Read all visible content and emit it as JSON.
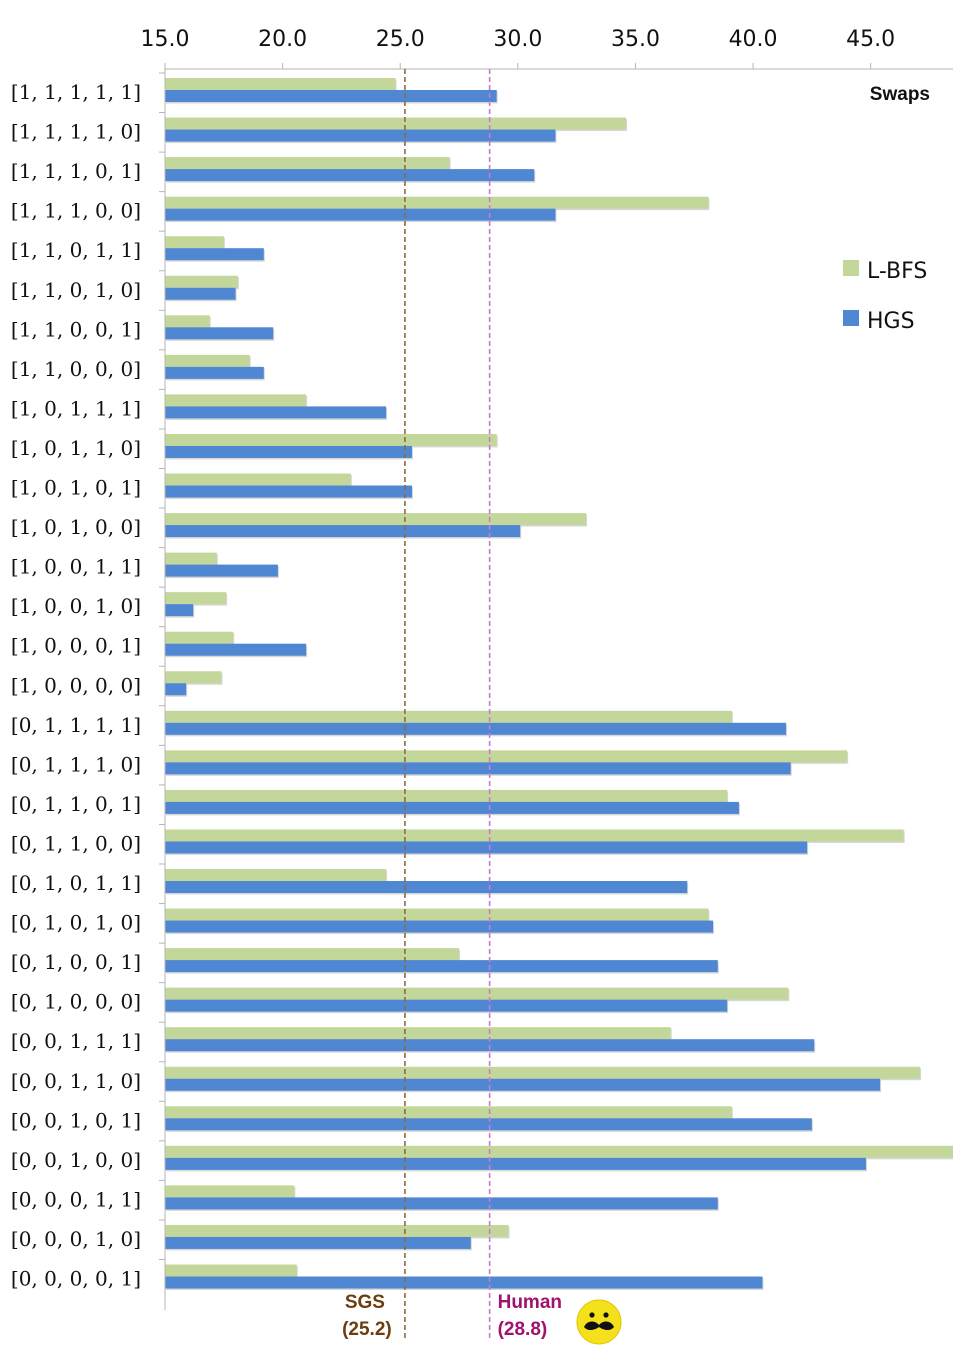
{
  "chart_data": {
    "type": "bar",
    "orientation": "horizontal",
    "title": "Swaps",
    "xlim": [
      15,
      48.5
    ],
    "x_ticks": [
      "15.0",
      "20.0",
      "25.0",
      "30.0",
      "35.0",
      "40.0",
      "45.0"
    ],
    "x_tick_values": [
      15,
      20,
      25,
      30,
      35,
      40,
      45
    ],
    "categories": [
      "[1, 1, 1, 1, 1]",
      "[1, 1, 1, 1, 0]",
      "[1, 1, 1, 0, 1]",
      "[1, 1, 1, 0, 0]",
      "[1, 1, 0, 1, 1]",
      "[1, 1, 0, 1, 0]",
      "[1, 1, 0, 0, 1]",
      "[1, 1, 0, 0, 0]",
      "[1, 0, 1, 1, 1]",
      "[1, 0, 1, 1, 0]",
      "[1, 0, 1, 0, 1]",
      "[1, 0, 1, 0, 0]",
      "[1, 0, 0, 1, 1]",
      "[1, 0, 0, 1, 0]",
      "[1, 0, 0, 0, 1]",
      "[1, 0, 0, 0, 0]",
      "[0, 1, 1, 1, 1]",
      "[0, 1, 1, 1, 0]",
      "[0, 1, 1, 0, 1]",
      "[0, 1, 1, 0, 0]",
      "[0, 1, 0, 1, 1]",
      "[0, 1, 0, 1, 0]",
      "[0, 1, 0, 0, 1]",
      "[0, 1, 0, 0, 0]",
      "[0, 0, 1, 1, 1]",
      "[0, 0, 1, 1, 0]",
      "[0, 0, 1, 0, 1]",
      "[0, 0, 1, 0, 0]",
      "[0, 0, 0, 1, 1]",
      "[0, 0, 0, 1, 0]",
      "[0, 0, 0, 0, 1]"
    ],
    "series": [
      {
        "name": "L-BFS",
        "color": "#c3d79b",
        "values": [
          24.8,
          34.6,
          27.1,
          38.1,
          17.5,
          18.1,
          16.9,
          18.6,
          21.0,
          29.1,
          22.9,
          32.9,
          17.2,
          17.6,
          17.9,
          17.4,
          39.1,
          44.0,
          38.9,
          46.4,
          24.4,
          38.1,
          27.5,
          41.5,
          36.5,
          47.1,
          39.1,
          48.5,
          20.5,
          29.6,
          20.6
        ]
      },
      {
        "name": "HGS",
        "color": "#4f87d2",
        "values": [
          29.1,
          31.6,
          30.7,
          31.6,
          19.2,
          18.0,
          19.6,
          19.2,
          24.4,
          25.5,
          25.5,
          30.1,
          19.8,
          16.2,
          21.0,
          15.9,
          41.4,
          41.6,
          39.4,
          42.3,
          37.2,
          38.3,
          38.5,
          38.9,
          42.6,
          45.4,
          42.5,
          44.8,
          38.5,
          28.0,
          40.4
        ]
      }
    ],
    "reference_lines": [
      {
        "label": "SGS",
        "value_label": "(25.2)",
        "value": 25.2,
        "color": "#8b6b4a",
        "text_color": "#6b3d10"
      },
      {
        "label": "Human",
        "value_label": "(28.8)",
        "value": 28.8,
        "color": "#c77bd2",
        "text_color": "#a0126e"
      }
    ],
    "legend_position": "right",
    "grid": false,
    "xlabel": "",
    "ylabel": ""
  },
  "icons": {
    "mascot": "mustache-smiley-icon"
  }
}
